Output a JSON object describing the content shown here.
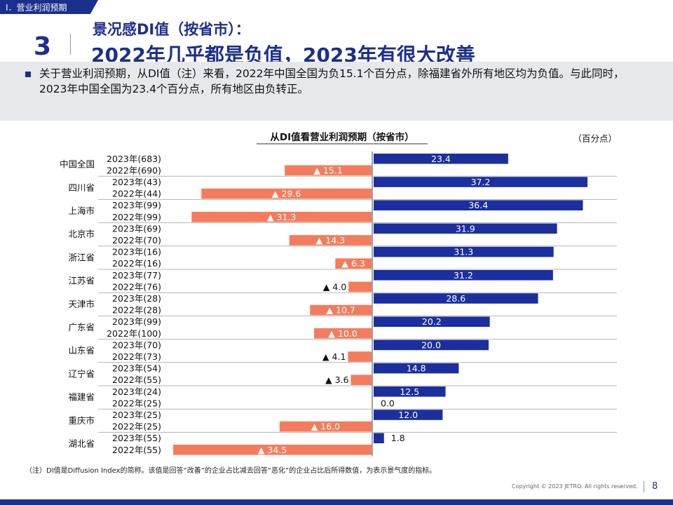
{
  "header": {
    "section_tag": "Ⅰ．营业利润预期",
    "slide_number": "3",
    "title_line1": "景况感DI值（按省市）：",
    "title_line2": "2022年几乎都是负值，2023年有很大改善"
  },
  "summary": {
    "text": "关于营业利润预期，从DI值（注）来看，2022年中国全国为负15.1个百分点，除福建省外所有地区均为负值。与此同时，2023年中国全国为23.4个百分点，所有地区由负转正。"
  },
  "chart_data": {
    "type": "bar",
    "orientation": "horizontal",
    "title": "从DI值看营业利润预期（按省市）",
    "unit": "（百分点）",
    "negative_marker": "▲",
    "colors": {
      "y2023": "#1b2f9e",
      "y2022": "#f47c5c"
    },
    "groups": [
      {
        "name": "中国全国",
        "rows": [
          {
            "label": "2023年(683)",
            "value": 23.4
          },
          {
            "label": "2022年(690)",
            "value": -15.1
          }
        ]
      },
      {
        "name": "四川省",
        "rows": [
          {
            "label": "2023年(43)",
            "value": 37.2
          },
          {
            "label": "2022年(44)",
            "value": -29.6
          }
        ]
      },
      {
        "name": "上海市",
        "rows": [
          {
            "label": "2023年(99)",
            "value": 36.4
          },
          {
            "label": "2022年(99)",
            "value": -31.3
          }
        ]
      },
      {
        "name": "北京市",
        "rows": [
          {
            "label": "2023年(69)",
            "value": 31.9
          },
          {
            "label": "2022年(70)",
            "value": -14.3
          }
        ]
      },
      {
        "name": "浙江省",
        "rows": [
          {
            "label": "2023年(16)",
            "value": 31.3
          },
          {
            "label": "2022年(16)",
            "value": -6.3
          }
        ]
      },
      {
        "name": "江苏省",
        "rows": [
          {
            "label": "2023年(77)",
            "value": 31.2
          },
          {
            "label": "2022年(76)",
            "value": -4.0
          }
        ]
      },
      {
        "name": "天津市",
        "rows": [
          {
            "label": "2023年(28)",
            "value": 28.6
          },
          {
            "label": "2022年(28)",
            "value": -10.7
          }
        ]
      },
      {
        "name": "广东省",
        "rows": [
          {
            "label": "2023年(99)",
            "value": 20.2
          },
          {
            "label": "2022年(100)",
            "value": -10.0
          }
        ]
      },
      {
        "name": "山东省",
        "rows": [
          {
            "label": "2023年(70)",
            "value": 20.0
          },
          {
            "label": "2022年(73)",
            "value": -4.1
          }
        ]
      },
      {
        "name": "辽宁省",
        "rows": [
          {
            "label": "2023年(54)",
            "value": 14.8
          },
          {
            "label": "2022年(55)",
            "value": -3.6
          }
        ]
      },
      {
        "name": "福建省",
        "rows": [
          {
            "label": "2023年(24)",
            "value": 12.5
          },
          {
            "label": "2022年(25)",
            "value": 0.0
          }
        ]
      },
      {
        "name": "重庆市",
        "rows": [
          {
            "label": "2023年(25)",
            "value": 12.0
          },
          {
            "label": "2022年(25)",
            "value": -16.0
          }
        ]
      },
      {
        "name": "湖北省",
        "rows": [
          {
            "label": "2023年(55)",
            "value": 1.8
          },
          {
            "label": "2022年(55)",
            "value": -34.5
          }
        ]
      }
    ]
  },
  "footer": {
    "note": "（注）DI值是Diffusion Index的简称。该值是回答“改善”的企业占比减去回答“恶化”的企业占比后所得数值，为表示景气度的指标。",
    "copyright": "Copyright © 2023 JETRO. All rights reserved.",
    "page_number": "8"
  }
}
